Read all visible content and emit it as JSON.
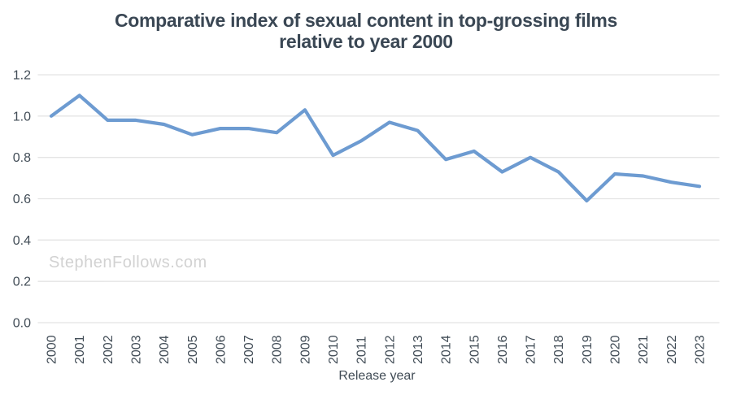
{
  "title": {
    "line1": "Comparative index of sexual content in top-grossing films",
    "line2": "relative to year 2000",
    "color": "#3a4754"
  },
  "watermark": {
    "text": "StephenFollows.com",
    "color": "#d2d2d2"
  },
  "chart_data": {
    "type": "line",
    "title": "Comparative index of sexual content in top-grossing films relative to year 2000",
    "xlabel": "Release year",
    "ylabel": "",
    "categories": [
      "2000",
      "2001",
      "2002",
      "2003",
      "2004",
      "2005",
      "2006",
      "2007",
      "2008",
      "2009",
      "2010",
      "2011",
      "2012",
      "2013",
      "2014",
      "2015",
      "2016",
      "2017",
      "2018",
      "2019",
      "2020",
      "2021",
      "2022",
      "2023"
    ],
    "series": [
      {
        "name": "Comparative index of sexual content (year 2000 = 1.0)",
        "values": [
          1.0,
          1.1,
          0.98,
          0.98,
          0.96,
          0.91,
          0.94,
          0.94,
          0.92,
          1.03,
          0.81,
          0.88,
          0.97,
          0.93,
          0.79,
          0.83,
          0.73,
          0.8,
          0.73,
          0.59,
          0.72,
          0.71,
          0.68,
          0.66
        ]
      }
    ],
    "ylim": [
      0,
      1.2
    ],
    "yticks": [
      0.0,
      0.2,
      0.4,
      0.6,
      0.8,
      1.0,
      1.2
    ],
    "grid": true,
    "legend": "none",
    "line_color": "#6d9bd1",
    "grid_color": "#e4e4e4",
    "axis_text_color": "#414c56"
  }
}
